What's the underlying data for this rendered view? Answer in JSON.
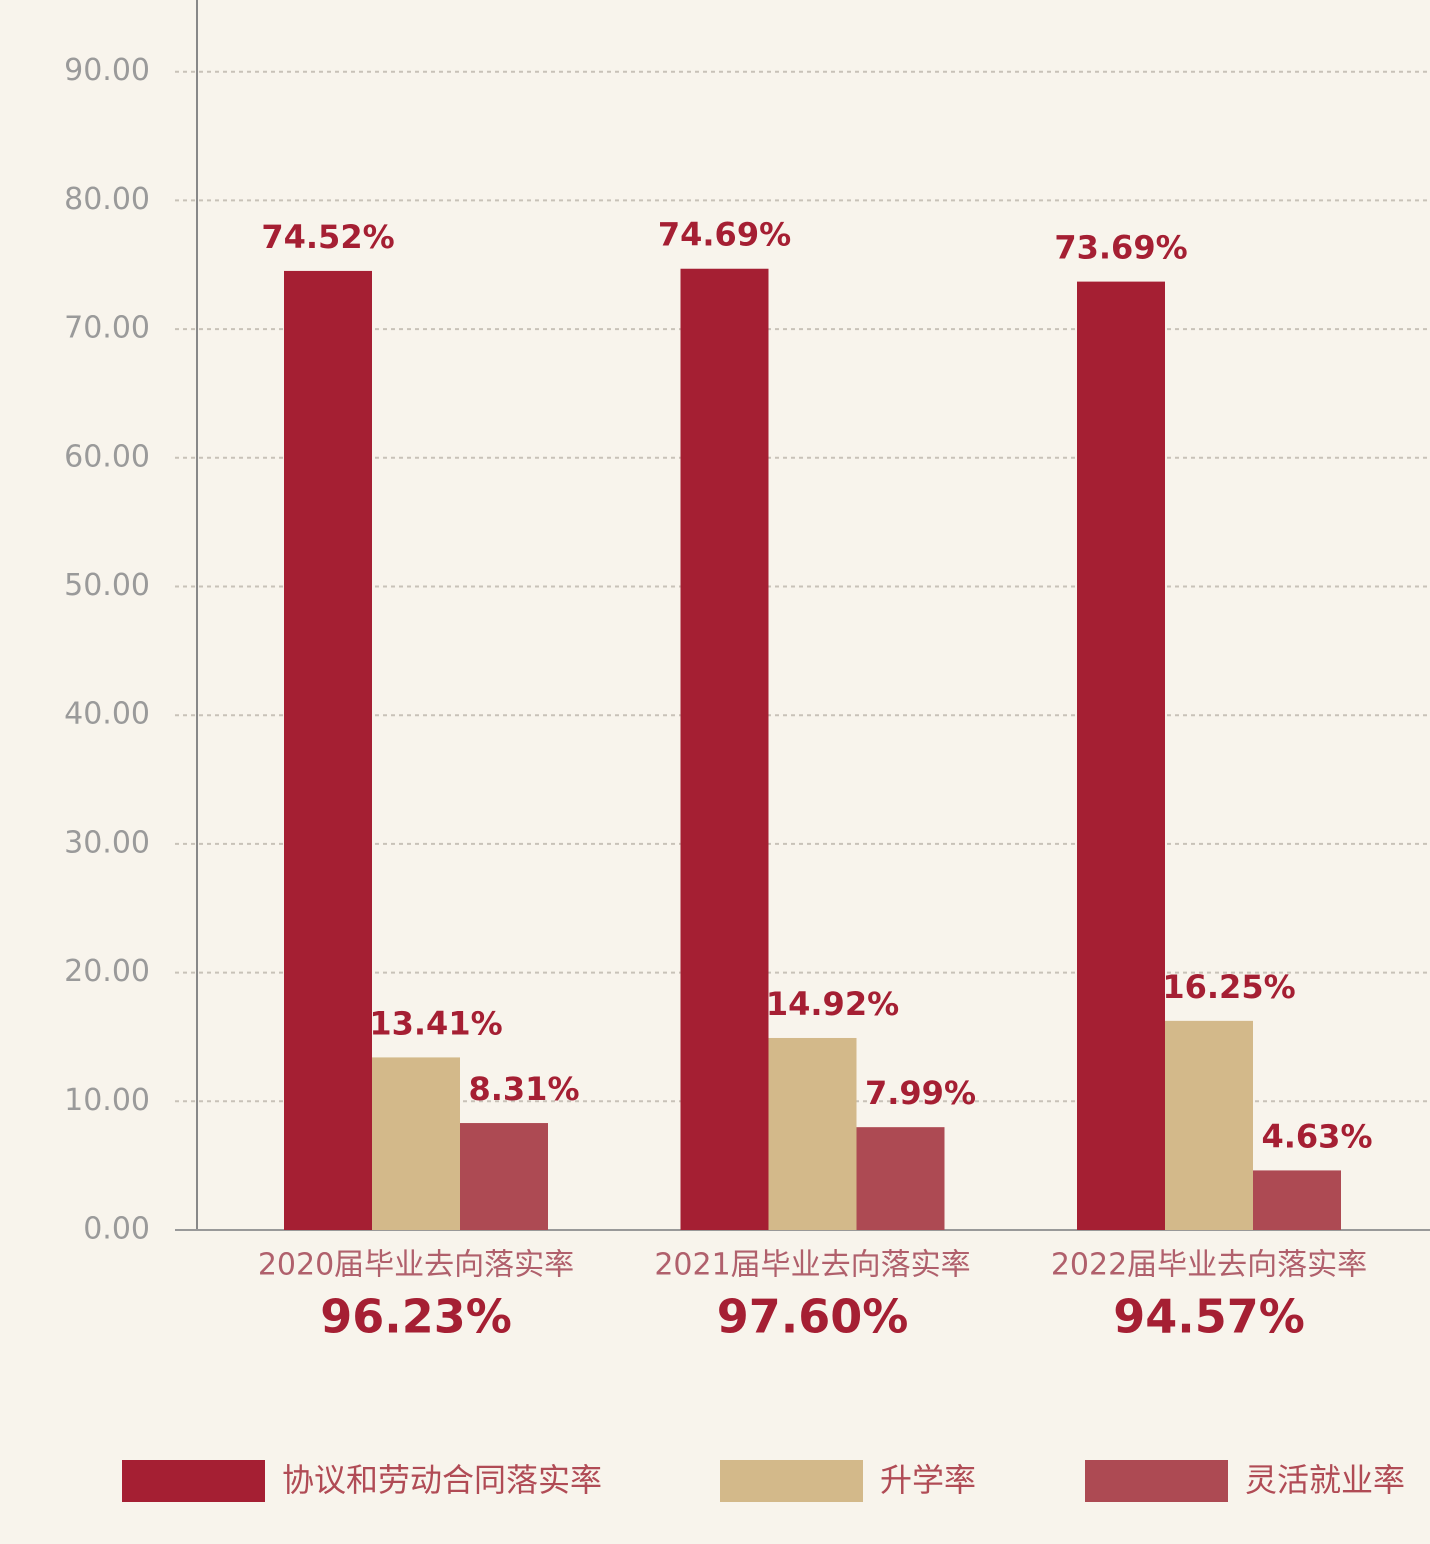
{
  "chart_data": {
    "type": "bar",
    "categories": [
      "2020届毕业去向落实率",
      "2021届毕业去向落实率",
      "2022届毕业去向落实率"
    ],
    "category_totals": [
      "96.23%",
      "97.60%",
      "94.57%"
    ],
    "series": [
      {
        "name": "协议和劳动合同落实率",
        "color": "#a51f33",
        "values": [
          74.52,
          74.69,
          73.69
        ],
        "value_labels": [
          "74.52%",
          "74.69%",
          "73.69%"
        ]
      },
      {
        "name": "升学率",
        "color": "#d3b98a",
        "values": [
          13.41,
          14.92,
          16.25
        ],
        "value_labels": [
          "13.41%",
          "14.92%",
          "16.25%"
        ]
      },
      {
        "name": "灵活就业率",
        "color": "#ad4a53",
        "values": [
          8.31,
          7.99,
          4.63
        ],
        "value_labels": [
          "8.31%",
          "7.99%",
          "4.63%"
        ]
      }
    ],
    "ylim": [
      0,
      95
    ],
    "yticks": [
      {
        "value": 0,
        "label": "0.00"
      },
      {
        "value": 10,
        "label": "10.00"
      },
      {
        "value": 20,
        "label": "20.00"
      },
      {
        "value": 30,
        "label": "30.00"
      },
      {
        "value": 40,
        "label": "40.00"
      },
      {
        "value": 50,
        "label": "50.00"
      },
      {
        "value": 60,
        "label": "60.00"
      },
      {
        "value": 70,
        "label": "70.00"
      },
      {
        "value": 80,
        "label": "80.00"
      },
      {
        "value": 90,
        "label": "90.00"
      }
    ],
    "grid": true
  }
}
